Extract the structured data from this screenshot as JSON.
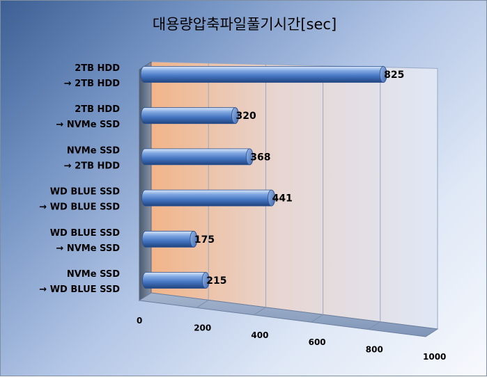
{
  "chart_data": {
    "type": "bar",
    "orientation": "horizontal",
    "title": "대용량압축파일풀기시간[sec]",
    "categories": [
      [
        "2TB HDD",
        "→ 2TB HDD"
      ],
      [
        "2TB HDD",
        "→ NVMe SSD"
      ],
      [
        "NVMe SSD",
        "→ 2TB HDD"
      ],
      [
        "WD BLUE SSD",
        "→ WD BLUE SSD"
      ],
      [
        "WD BLUE SSD",
        "→ NVMe SSD"
      ],
      [
        "NVMe SSD",
        "→ WD BLUE SSD"
      ]
    ],
    "values": [
      825,
      320,
      368,
      441,
      175,
      215
    ],
    "xlim": [
      0,
      1000
    ],
    "ticks": [
      0,
      200,
      400,
      600,
      800,
      1000
    ],
    "grid": true,
    "legend": "none",
    "colors": {
      "bar": "#4a7bc6",
      "bar_dark": "#1f447f",
      "bar_light": "#c9dcf4",
      "wall_left": "#f2b88d",
      "wall_right": "#dde6f4",
      "floor": "#8ea3c2"
    }
  }
}
